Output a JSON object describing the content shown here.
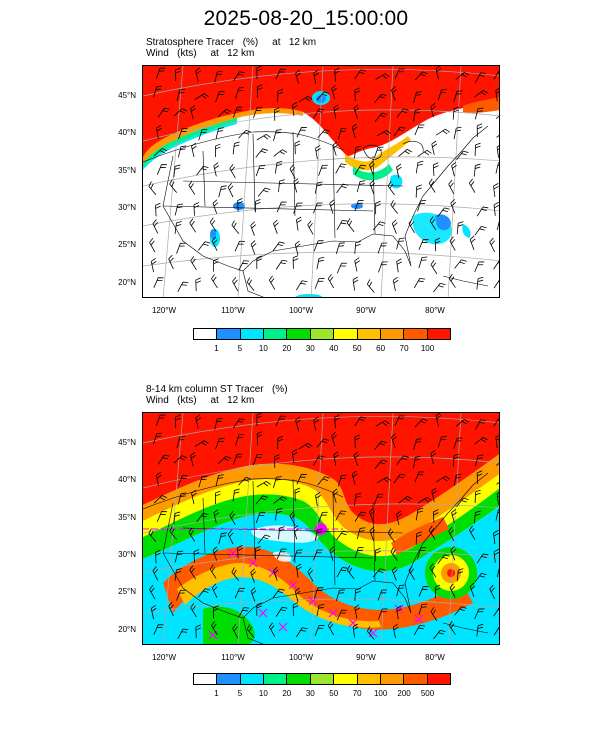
{
  "title": "2025-08-20_15:00:00",
  "panels": [
    {
      "caption_line1": "Stratosphere Tracer   (%)     at   12 km",
      "caption_line2": "Wind   (kts)     at   12 km",
      "colorbar_labels": [
        "1",
        "5",
        "10",
        "20",
        "30",
        "40",
        "50",
        "60",
        "70",
        "100"
      ]
    },
    {
      "caption_line1": "8-14 km column ST Tracer   (%)",
      "caption_line2": "Wind   (kts)     at   12 km",
      "colorbar_labels": [
        "1",
        "5",
        "10",
        "20",
        "30",
        "50",
        "70",
        "100",
        "200",
        "500"
      ]
    }
  ],
  "lat_labels": [
    "45°N",
    "40°N",
    "35°N",
    "30°N",
    "25°N",
    "20°N"
  ],
  "lon_labels": [
    "120°W",
    "110°W",
    "100°W",
    "90°W",
    "80°W"
  ],
  "colors": {
    "c0": "#ffffff",
    "c1": "#1e90ff",
    "c2": "#00e5ff",
    "c3": "#00f08a",
    "c4": "#00dd00",
    "c5": "#9be62a",
    "c6": "#ffff00",
    "c7": "#ffc000",
    "c8": "#ff9a00",
    "c9": "#ff5a00",
    "c10": "#ff1400",
    "cross": "#ff00ff"
  }
}
